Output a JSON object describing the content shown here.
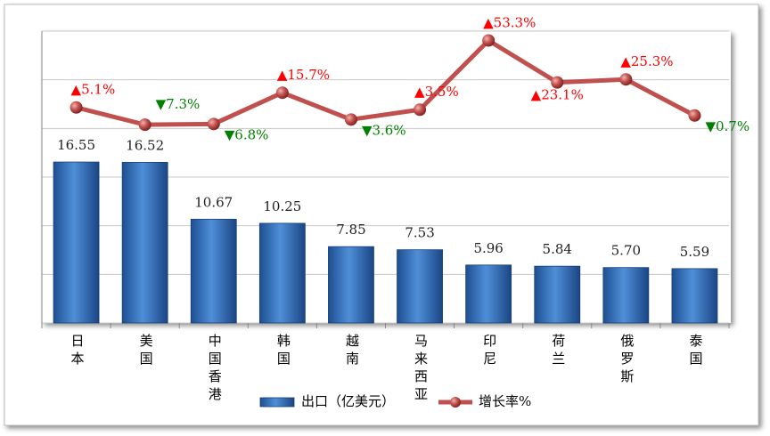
{
  "chart_data": {
    "type": "bar-line",
    "categories": [
      "日本",
      "美国",
      "中国香港",
      "韩国",
      "越南",
      "马来西亚",
      "印尼",
      "荷兰",
      "俄罗斯",
      "泰国"
    ],
    "series": [
      {
        "name": "出口（亿美元）",
        "type": "bar",
        "color": "#2e6cb5",
        "values": [
          16.55,
          16.52,
          10.67,
          10.25,
          7.85,
          7.53,
          5.96,
          5.84,
          5.7,
          5.59
        ],
        "value_labels": [
          "16.55",
          "16.52",
          "10.67",
          "10.25",
          "7.85",
          "7.53",
          "5.96",
          "5.84",
          "5.70",
          "5.59"
        ]
      },
      {
        "name": "增长率%",
        "type": "line",
        "axis": "y2",
        "color": "#c0504d",
        "values": [
          5.1,
          -7.3,
          -6.8,
          15.7,
          -3.6,
          3.5,
          53.3,
          23.1,
          25.3,
          -0.7
        ],
        "value_labels": [
          "▲5.1%",
          "▼7.3%",
          "▼6.8%",
          "▲15.7%",
          "▼3.6%",
          "▲3.5%",
          "▲53.3%",
          "▲23.1%",
          "▲25.3%",
          "▼0.7%"
        ]
      }
    ],
    "up_color": "#ff0000",
    "down_color": "#008000",
    "ylim": [
      0,
      30
    ],
    "yticks": [
      0,
      5,
      10,
      15,
      20,
      25,
      30
    ],
    "y2lim": [
      -150,
      60
    ],
    "grid": true
  }
}
